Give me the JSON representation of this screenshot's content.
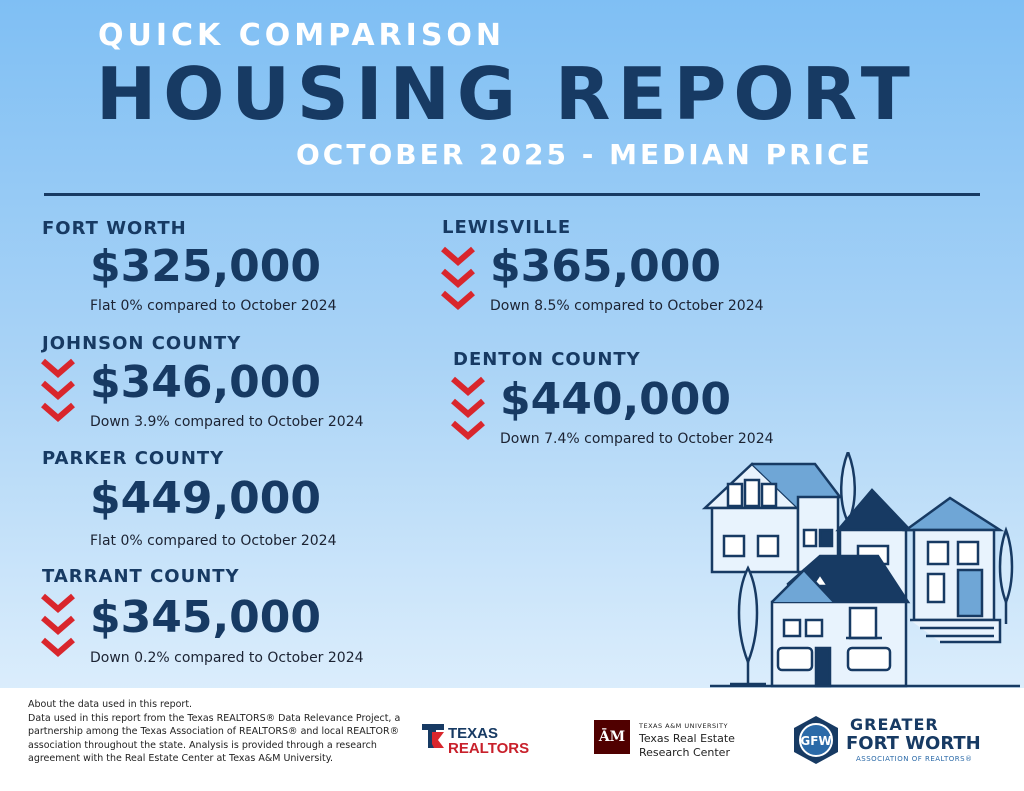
{
  "header": {
    "kicker": "QUICK COMPARISON",
    "title": "HOUSING REPORT",
    "subtitle": "OCTOBER 2025 - MEDIAN PRICE"
  },
  "regions": [
    {
      "name": "FORT WORTH",
      "price": "$325,000",
      "note": "Flat 0% compared to October 2024",
      "trend": "flat"
    },
    {
      "name": "JOHNSON COUNTY",
      "price": "$346,000",
      "note": "Down 3.9% compared to October 2024",
      "trend": "down"
    },
    {
      "name": "PARKER COUNTY",
      "price": "$449,000",
      "note": "Flat 0% compared to October 2024",
      "trend": "flat"
    },
    {
      "name": "TARRANT COUNTY",
      "price": "$345,000",
      "note": "Down 0.2% compared to October 2024",
      "trend": "down"
    },
    {
      "name": "LEWISVILLE",
      "price": "$365,000",
      "note": "Down 8.5% compared to October 2024",
      "trend": "down"
    },
    {
      "name": "DENTON COUNTY",
      "price": "$440,000",
      "note": "Down 7.4% compared to October 2024",
      "trend": "down"
    }
  ],
  "footer": {
    "about": "About the data used in this report.",
    "body": "Data used in this report from the Texas REALTORS® Data Relevance Project, a partnership among the Texas Association of REALTORS® and local REALTOR® association throughout the state. Analysis is provided through a research agreement with the Real Estate Center at Texas A&M University."
  },
  "logos": {
    "texas_realtors_1": "TEXAS",
    "texas_realtors_2": "REALTORS",
    "tam_mark": "ĀM",
    "tam_1": "TEXAS A&M UNIVERSITY",
    "tam_2": "Texas Real Estate",
    "tam_3": "Research Center",
    "gfw_1": "GREATER",
    "gfw_2": "FORT WORTH",
    "gfw_3": "ASSOCIATION OF REALTORS®",
    "gfw_mark": "GFW"
  },
  "colors": {
    "navy": "#173a63",
    "down_arrow": "#d9262c",
    "white": "#ffffff"
  }
}
